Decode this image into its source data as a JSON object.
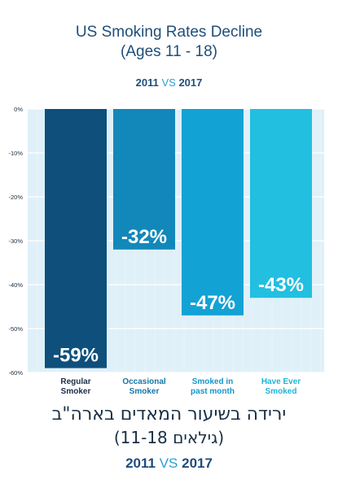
{
  "header": {
    "title": "US Smoking Rates Decline\n(Ages 11 - 18)",
    "years": {
      "from": "2011",
      "vs": "VS",
      "to": "2017"
    }
  },
  "footer": {
    "hebrew_line1": "ירידה בשיעור המאדים בארה\"ב",
    "hebrew_line2": "(גילאים 11-18)",
    "years": {
      "from": "2011",
      "vs": "VS",
      "to": "2017"
    }
  },
  "chart_data": {
    "type": "bar",
    "categories": [
      "Regular Smoker",
      "Occasional Smoker",
      "Smoked in past month",
      "Have Ever Smoked"
    ],
    "values": [
      -59,
      -32,
      -47,
      -43
    ],
    "data_labels": [
      "-59%",
      "-32%",
      "-47%",
      "-43%"
    ],
    "yticks": [
      0,
      -10,
      -20,
      -30,
      -40,
      -50,
      -60
    ],
    "ytick_labels": [
      "0%",
      "-10%",
      "-20%",
      "-30%",
      "-40%",
      "-50%",
      "-60%"
    ],
    "ylim": [
      -60,
      0
    ],
    "grid": true,
    "colors": {
      "bars": [
        "#0e4f7c",
        "#1288ba",
        "#13a2d4",
        "#22bfe0"
      ],
      "category_labels": [
        "#1a2f44",
        "#1576a8",
        "#1596cc",
        "#1fb5d8"
      ],
      "plot_background": "#dff0f8",
      "gridline": "#ffffff",
      "axis_text": "#1a2f44"
    }
  }
}
